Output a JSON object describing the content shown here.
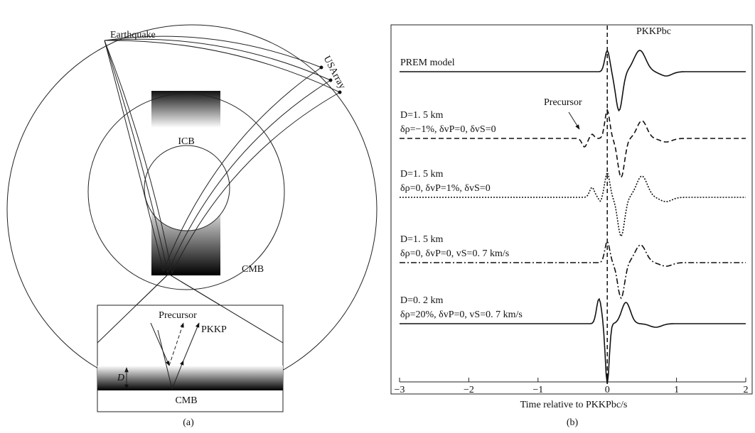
{
  "panel_a": {
    "earthquake": "Earthquake",
    "usarray": "USArray",
    "icb": "ICB",
    "cmb": "CMB",
    "inset": {
      "precursor": "Precursor",
      "pkkp": "PKKP",
      "d": "D",
      "cmb": "CMB"
    },
    "caption": "(a)"
  },
  "panel_b": {
    "phase": "PKKPbc",
    "precursor": "Precursor",
    "traces": [
      {
        "lines": [
          "PREM model"
        ]
      },
      {
        "lines": [
          "D=1. 5 km",
          "δρ=−1%, δvP=0, δvS=0"
        ]
      },
      {
        "lines": [
          "D=1. 5 km",
          "δρ=0, δvP=1%, δvS=0"
        ]
      },
      {
        "lines": [
          "D=1. 5 km",
          "δρ=0, δvP=0, vS=0. 7 km/s"
        ]
      },
      {
        "lines": [
          "D=0. 2 km",
          "δρ=20%, δvP=0, vS=0. 7 km/s"
        ]
      }
    ],
    "xlabel": "Time relative to PKKPbc/s",
    "xlim": [
      -3,
      2
    ],
    "xticks": [
      {
        "value": -3,
        "label": "−3"
      },
      {
        "value": -2,
        "label": "−2"
      },
      {
        "value": -1,
        "label": "−1"
      },
      0,
      1,
      2
    ],
    "caption": "(b)"
  }
}
